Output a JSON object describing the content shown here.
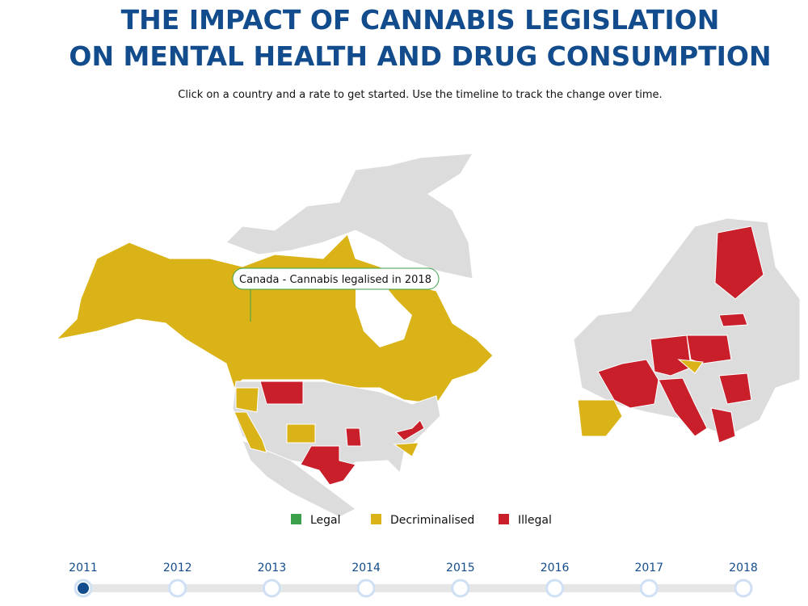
{
  "header": {
    "title": [
      "THE IMPACT OF CANNABIS LEGISLATION",
      "ON MENTAL HEALTH AND DRUG CONSUMPTION"
    ],
    "subtitle": "Click on a country and a rate to get started. Use the timeline to track the change over time."
  },
  "tooltip": "Canada - Cannabis legalised in 2018",
  "legend": [
    "Legal",
    "Decriminalised",
    "Illegal"
  ],
  "timeline": [
    "2011",
    "2012",
    "2013",
    "2014",
    "2015",
    "2016",
    "2017",
    "2018"
  ]
}
